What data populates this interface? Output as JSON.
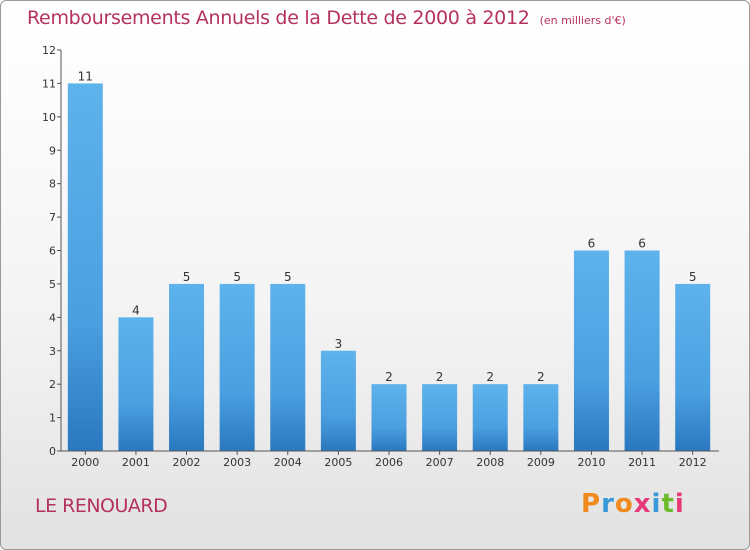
{
  "chart_data": {
    "type": "bar",
    "title": "Remboursements Annuels de la Dette de 2000 à 2012",
    "unit_label": "(en milliers d'€)",
    "categories": [
      "2000",
      "2001",
      "2002",
      "2003",
      "2004",
      "2005",
      "2006",
      "2007",
      "2008",
      "2009",
      "2010",
      "2011",
      "2012"
    ],
    "values": [
      11,
      4,
      5,
      5,
      5,
      3,
      2,
      2,
      2,
      2,
      6,
      6,
      5
    ],
    "data_labels": [
      "11",
      "4",
      "5",
      "5",
      "5",
      "3",
      "2",
      "2",
      "2",
      "2",
      "6",
      "6",
      "5"
    ],
    "yticks": [
      "0",
      "1",
      "2",
      "3",
      "4",
      "5",
      "6",
      "7",
      "8",
      "9",
      "10",
      "11",
      "12"
    ],
    "ylim": [
      0,
      12
    ],
    "grid": false,
    "bar_color": "#5aaee8"
  },
  "footer": {
    "place": "LE RENOUARD",
    "logo": "Proxiti"
  },
  "colors": {
    "title": "#b5315e",
    "logo_letters": [
      "#f08a1c",
      "#3a9ad9",
      "#f08a1c",
      "#e83a7a",
      "#3a9ad9",
      "#6cbb2c",
      "#e83a7a"
    ]
  }
}
